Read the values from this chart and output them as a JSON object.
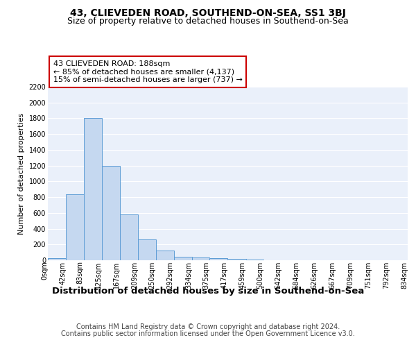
{
  "title1": "43, CLIEVEDEN ROAD, SOUTHEND-ON-SEA, SS1 3BJ",
  "title2": "Size of property relative to detached houses in Southend-on-Sea",
  "xlabel": "Distribution of detached houses by size in Southend-on-Sea",
  "ylabel": "Number of detached properties",
  "footer1": "Contains HM Land Registry data © Crown copyright and database right 2024.",
  "footer2": "Contains public sector information licensed under the Open Government Licence v3.0.",
  "bar_edges": [
    0,
    42,
    83,
    125,
    167,
    209,
    250,
    292,
    334,
    375,
    417,
    459,
    500,
    542,
    584,
    626,
    667,
    709,
    751,
    792,
    834
  ],
  "bar_heights": [
    25,
    840,
    1800,
    1200,
    580,
    260,
    120,
    45,
    35,
    25,
    15,
    8,
    4,
    2,
    2,
    1,
    1,
    1,
    0,
    0
  ],
  "bar_color": "#c5d8f0",
  "bar_edgecolor": "#5b9bd5",
  "annotation_title": "43 CLIEVEDEN ROAD: 188sqm",
  "annotation_line1": "← 85% of detached houses are smaller (4,137)",
  "annotation_line2": "15% of semi-detached houses are larger (737) →",
  "annotation_box_color": "#ffffff",
  "annotation_border_color": "#cc0000",
  "ylim": [
    0,
    2200
  ],
  "yticks": [
    0,
    200,
    400,
    600,
    800,
    1000,
    1200,
    1400,
    1600,
    1800,
    2000,
    2200
  ],
  "tick_labels": [
    "0sqm",
    "42sqm",
    "83sqm",
    "125sqm",
    "167sqm",
    "209sqm",
    "250sqm",
    "292sqm",
    "334sqm",
    "375sqm",
    "417sqm",
    "459sqm",
    "500sqm",
    "542sqm",
    "584sqm",
    "626sqm",
    "667sqm",
    "709sqm",
    "751sqm",
    "792sqm",
    "834sqm"
  ],
  "bg_color": "#eaf0fa",
  "fig_bg_color": "#ffffff",
  "grid_color": "#ffffff",
  "title1_fontsize": 10,
  "title2_fontsize": 9,
  "xlabel_fontsize": 9.5,
  "ylabel_fontsize": 8,
  "tick_fontsize": 7,
  "footer_fontsize": 7,
  "annotation_fontsize": 8
}
